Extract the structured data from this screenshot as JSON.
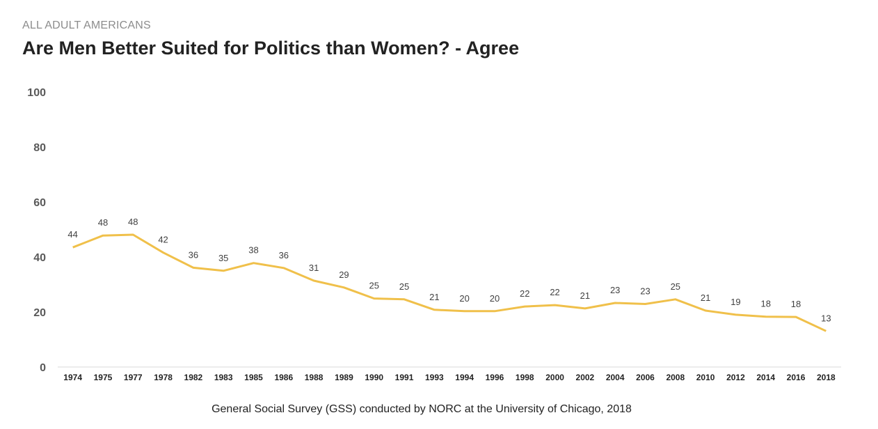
{
  "header": {
    "subtitle": "ALL ADULT AMERICANS",
    "title": "Are Men Better Suited for Politics than Women? - Agree"
  },
  "footer": {
    "source": "General Social Survey (GSS) conducted by NORC at the University of Chicago, 2018"
  },
  "chart_data": {
    "type": "line",
    "title": "Are Men Better Suited for Politics than Women? - Agree",
    "subtitle": "ALL ADULT AMERICANS",
    "xlabel": "",
    "ylabel": "",
    "ylim": [
      0,
      100
    ],
    "yticks": [
      0,
      20,
      40,
      60,
      80,
      100
    ],
    "grid": false,
    "legend": "none",
    "line_color": "#f0c04a",
    "categories": [
      "1974",
      "1975",
      "1977",
      "1978",
      "1982",
      "1983",
      "1985",
      "1986",
      "1988",
      "1989",
      "1990",
      "1991",
      "1993",
      "1994",
      "1996",
      "1998",
      "2000",
      "2002",
      "2004",
      "2006",
      "2008",
      "2010",
      "2012",
      "2014",
      "2016",
      "2018"
    ],
    "points": [
      {
        "label": "44",
        "y": 43.5
      },
      {
        "label": "48",
        "y": 47.8
      },
      {
        "label": "48",
        "y": 48.1
      },
      {
        "label": "42",
        "y": 41.6
      },
      {
        "label": "36",
        "y": 36.1
      },
      {
        "label": "35",
        "y": 35.0
      },
      {
        "label": "38",
        "y": 37.8
      },
      {
        "label": "36",
        "y": 36.0
      },
      {
        "label": "31",
        "y": 31.4
      },
      {
        "label": "29",
        "y": 28.9
      },
      {
        "label": "25",
        "y": 24.9
      },
      {
        "label": "25",
        "y": 24.6
      },
      {
        "label": "21",
        "y": 20.8
      },
      {
        "label": "20",
        "y": 20.3
      },
      {
        "label": "20",
        "y": 20.3
      },
      {
        "label": "22",
        "y": 22.0
      },
      {
        "label": "22",
        "y": 22.5
      },
      {
        "label": "21",
        "y": 21.3
      },
      {
        "label": "23",
        "y": 23.3
      },
      {
        "label": "23",
        "y": 22.9
      },
      {
        "label": "25",
        "y": 24.6
      },
      {
        "label": "21",
        "y": 20.5
      },
      {
        "label": "19",
        "y": 19.0
      },
      {
        "label": "18",
        "y": 18.3
      },
      {
        "label": "18",
        "y": 18.2
      },
      {
        "label": "13",
        "y": 13.1
      }
    ]
  }
}
